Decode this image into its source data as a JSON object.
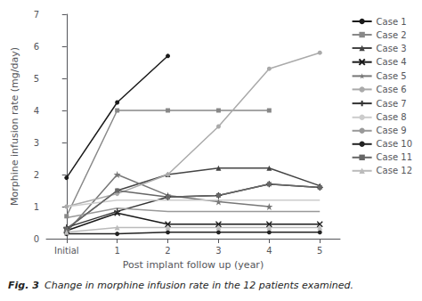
{
  "chart_data": {
    "type": "line",
    "title": "Fig. 3",
    "subtitle": "Change in morphine infusion rate in the 12 patients examined.",
    "x_label": "Post implant follow up (year)",
    "y_label": "Morphine infusion rate (mg/day)",
    "x": [
      0,
      1,
      2,
      3,
      4,
      5
    ],
    "xlim": [
      -0.4,
      5.4
    ],
    "xticks": [
      {
        "value": 0,
        "label": "Initial"
      },
      1,
      2,
      3,
      4,
      5
    ],
    "ylim": [
      0,
      7
    ],
    "yticks": [
      0,
      1,
      2,
      3,
      4,
      5,
      6,
      7
    ],
    "grid": false,
    "legend": "right",
    "series": [
      {
        "name": "Case 1",
        "color": "#1a1a1a",
        "marker": "circle",
        "values": [
          1.9,
          4.25,
          5.7,
          null,
          null,
          null
        ]
      },
      {
        "name": "Case 2",
        "color": "#888888",
        "marker": "square",
        "values": [
          0.7,
          4.0,
          4.0,
          4.0,
          4.0,
          null
        ]
      },
      {
        "name": "Case 3",
        "color": "#444444",
        "marker": "triangle",
        "values": [
          0.3,
          1.5,
          2.0,
          2.2,
          2.2,
          1.65
        ]
      },
      {
        "name": "Case 4",
        "color": "#1a1a1a",
        "marker": "x",
        "values": [
          0.25,
          0.8,
          0.45,
          0.45,
          0.45,
          0.45
        ]
      },
      {
        "name": "Case 5",
        "color": "#777777",
        "marker": "star",
        "values": [
          0.2,
          2.0,
          1.35,
          1.15,
          1.0,
          null
        ]
      },
      {
        "name": "Case 6",
        "color": "#aaaaaa",
        "marker": "circle",
        "values": [
          1.0,
          1.4,
          2.0,
          3.5,
          5.3,
          5.8
        ]
      },
      {
        "name": "Case 7",
        "color": "#333333",
        "marker": "plus",
        "values": [
          0.35,
          0.85,
          1.3,
          1.35,
          1.7,
          1.6
        ]
      },
      {
        "name": "Case 8",
        "color": "#cccccc",
        "marker": "none",
        "values": [
          1.0,
          1.2,
          1.2,
          1.2,
          1.2,
          1.2
        ]
      },
      {
        "name": "Case 9",
        "color": "#999999",
        "marker": "none",
        "values": [
          0.65,
          0.95,
          0.85,
          0.85,
          0.85,
          0.85
        ]
      },
      {
        "name": "Case 10",
        "color": "#222222",
        "marker": "circle",
        "values": [
          0.15,
          0.15,
          0.2,
          0.2,
          0.2,
          0.2
        ]
      },
      {
        "name": "Case 11",
        "color": "#666666",
        "marker": "square",
        "values": [
          0.3,
          1.5,
          1.3,
          1.35,
          1.7,
          1.6
        ]
      },
      {
        "name": "Case 12",
        "color": "#bbbbbb",
        "marker": "triangle",
        "values": [
          0.2,
          0.35,
          0.35,
          0.35,
          0.35,
          0.35
        ]
      }
    ]
  }
}
